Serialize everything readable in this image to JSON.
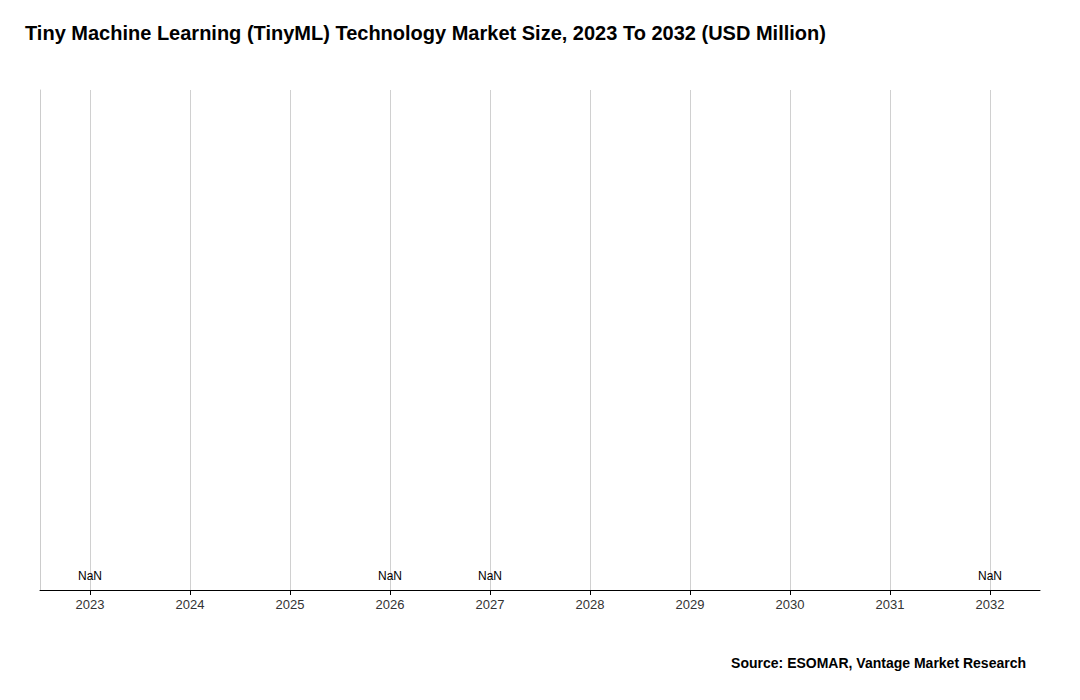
{
  "chart_data": {
    "type": "bar",
    "title": "Tiny Machine Learning (TinyML) Technology Market Size, 2023 To 2032 (USD Million)",
    "source": "Source: ESOMAR, Vantage Market Research",
    "categories": [
      "2023",
      "2024",
      "2025",
      "2026",
      "2027",
      "2028",
      "2029",
      "2030",
      "2031",
      "2032"
    ],
    "values": [
      null,
      null,
      null,
      null,
      null,
      null,
      null,
      null,
      null,
      null
    ],
    "annotations": [
      {
        "x": "2023",
        "text": "NaN"
      },
      {
        "x": "2026",
        "text": "NaN"
      },
      {
        "x": "2027",
        "text": "NaN"
      },
      {
        "x": "2032",
        "text": "NaN"
      }
    ],
    "ylim": [
      0,
      1
    ],
    "grid": true,
    "tick_labels": "x"
  }
}
